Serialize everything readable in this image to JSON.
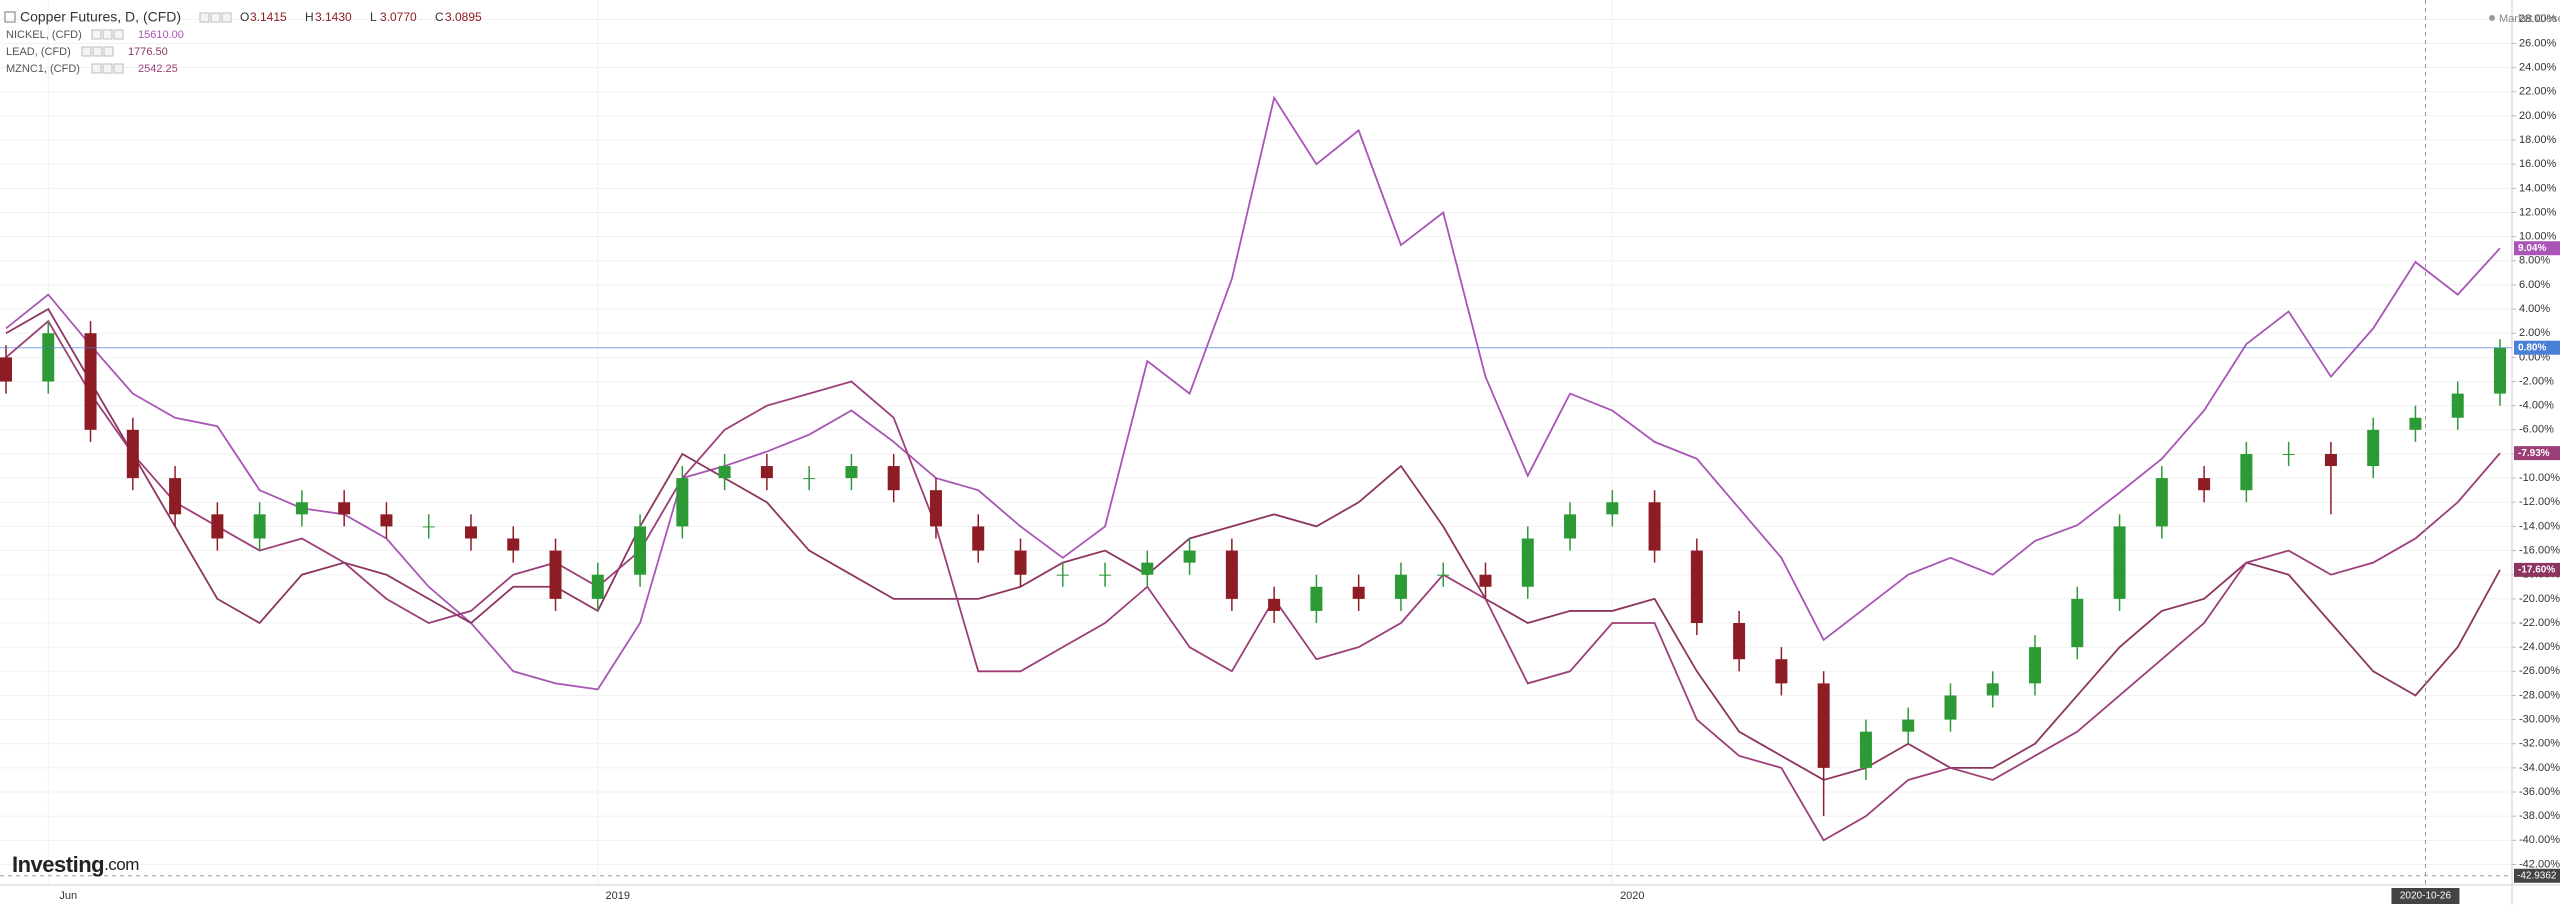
{
  "chart_data": {
    "type": "line",
    "market_status": "Market Closed",
    "brand_name": "Investing",
    "brand_suffix": ".com",
    "ohlc": [
      {
        "label": "O",
        "value": "3.1415"
      },
      {
        "label": "H",
        "value": "3.1430"
      },
      {
        "label": "L",
        "value": "3.0770"
      },
      {
        "label": "C",
        "value": "3.0895"
      }
    ],
    "categories": [
      null,
      "Jun",
      null,
      null,
      null,
      null,
      null,
      null,
      null,
      null,
      null,
      null,
      null,
      null,
      "2019",
      null,
      null,
      null,
      null,
      null,
      null,
      null,
      null,
      null,
      null,
      null,
      null,
      null,
      null,
      null,
      null,
      null,
      null,
      null,
      null,
      null,
      null,
      null,
      "2020",
      null,
      null,
      null,
      null,
      null,
      null,
      null,
      null,
      null,
      null,
      null,
      null,
      null,
      null,
      null,
      null,
      null,
      null,
      null,
      null,
      null
    ],
    "crosshair": {
      "x_label": "2020-10-26",
      "y": -42.9362
    },
    "ylim": [
      -43.7,
      29.6
    ],
    "grid": true,
    "yticks": [
      {
        "value": -42,
        "label": "-42.00%"
      },
      {
        "value": -40,
        "label": "-40.00%"
      },
      {
        "value": -38,
        "label": "-38.00%"
      },
      {
        "value": -36,
        "label": "-36.00%"
      },
      {
        "value": -34,
        "label": "-34.00%"
      },
      {
        "value": -32,
        "label": "-32.00%"
      },
      {
        "value": -30,
        "label": "-30.00%"
      },
      {
        "value": -28,
        "label": "-28.00%"
      },
      {
        "value": -26,
        "label": "-26.00%"
      },
      {
        "value": -24,
        "label": "-24.00%"
      },
      {
        "value": -22,
        "label": "-22.00%"
      },
      {
        "value": -20,
        "label": "-20.00%"
      },
      {
        "value": -18,
        "label": "-18.00%"
      },
      {
        "value": -16,
        "label": "-16.00%"
      },
      {
        "value": -14,
        "label": "-14.00%"
      },
      {
        "value": -12,
        "label": "-12.00%"
      },
      {
        "value": -10,
        "label": "-10.00%"
      },
      {
        "value": -8,
        "label": "-8.00%"
      },
      {
        "value": -6,
        "label": "-6.00%"
      },
      {
        "value": -4,
        "label": "-4.00%"
      },
      {
        "value": -2,
        "label": "-2.00%"
      },
      {
        "value": 0,
        "label": "0.00%"
      },
      {
        "value": 2,
        "label": "2.00%"
      },
      {
        "value": 4,
        "label": "4.00%"
      },
      {
        "value": 6,
        "label": "6.00%"
      },
      {
        "value": 8,
        "label": "8.00%"
      },
      {
        "value": 10,
        "label": "10.00%"
      },
      {
        "value": 12,
        "label": "12.00%"
      },
      {
        "value": 14,
        "label": "14.00%"
      },
      {
        "value": 16,
        "label": "16.00%"
      },
      {
        "value": 18,
        "label": "18.00%"
      },
      {
        "value": 20,
        "label": "20.00%"
      },
      {
        "value": 22,
        "label": "22.00%"
      },
      {
        "value": 24,
        "label": "24.00%"
      },
      {
        "value": 26,
        "label": "26.00%"
      },
      {
        "value": 28,
        "label": "28.00%"
      }
    ],
    "series": [
      {
        "name": "Copper Futures, D, (CFD)",
        "type": "candlestick",
        "up_color": "#2e9a36",
        "down_color": "#8e1c24",
        "color": "#4a7fd8",
        "end_label": "0.80%",
        "open": [
          0,
          -2,
          2,
          -6,
          -10,
          -13,
          -15,
          -13,
          -12,
          -13,
          -14,
          -14,
          -15,
          -16,
          -20,
          -18,
          -14,
          -10,
          -9,
          -10,
          -10,
          -9,
          -11,
          -14,
          -16,
          -18,
          -18,
          -18,
          -17,
          -16,
          -20,
          -21,
          -19,
          -20,
          -18,
          -18,
          -19,
          -15,
          -13,
          -12,
          -16,
          -22,
          -25,
          -27,
          -34,
          -31,
          -30,
          -28,
          -27,
          -24,
          -20,
          -14,
          -10,
          -11,
          -8,
          -8,
          -9,
          -6,
          -5,
          -3
        ],
        "high": [
          1,
          3,
          3,
          -5,
          -9,
          -12,
          -12,
          -11,
          -11,
          -12,
          -13,
          -13,
          -14,
          -15,
          -17,
          -13,
          -9,
          -8,
          -8,
          -9,
          -8,
          -8,
          -10,
          -13,
          -15,
          -17,
          -17,
          -16,
          -15,
          -15,
          -19,
          -18,
          -18,
          -17,
          -17,
          -17,
          -14,
          -12,
          -11,
          -11,
          -15,
          -21,
          -24,
          -26,
          -30,
          -29,
          -27,
          -26,
          -23,
          -19,
          -13,
          -9,
          -9,
          -7,
          -7,
          -7,
          -5,
          -4,
          -2,
          1.5
        ],
        "low": [
          -3,
          -3,
          -7,
          -11,
          -14,
          -16,
          -16,
          -14,
          -14,
          -15,
          -15,
          -16,
          -17,
          -21,
          -21,
          -19,
          -15,
          -11,
          -11,
          -11,
          -11,
          -12,
          -15,
          -17,
          -19,
          -19,
          -19,
          -19,
          -18,
          -21,
          -22,
          -22,
          -21,
          -21,
          -19,
          -20,
          -20,
          -16,
          -14,
          -17,
          -23,
          -26,
          -28,
          -38,
          -35,
          -32,
          -31,
          -29,
          -28,
          -25,
          -21,
          -15,
          -12,
          -12,
          -9,
          -13,
          -10,
          -7,
          -6,
          -4
        ],
        "close": [
          -2,
          2,
          -6,
          -10,
          -13,
          -15,
          -13,
          -12,
          -13,
          -14,
          -14,
          -15,
          -16,
          -20,
          -18,
          -14,
          -10,
          -9,
          -10,
          -10,
          -9,
          -11,
          -14,
          -16,
          -18,
          -18,
          -18,
          -17,
          -16,
          -20,
          -21,
          -19,
          -20,
          -18,
          -18,
          -19,
          -15,
          -13,
          -12,
          -16,
          -22,
          -25,
          -27,
          -34,
          -31,
          -30,
          -28,
          -27,
          -24,
          -20,
          -14,
          -10,
          -11,
          -8,
          -8,
          -9,
          -6,
          -5,
          -3,
          0.8
        ]
      },
      {
        "name": "NICKEL, (CFD)",
        "type": "line",
        "color": "#a855b5",
        "last_price": "15610.00",
        "end_label": "9.04%",
        "values": [
          2.4,
          5.2,
          1,
          -3,
          -5,
          -5.7,
          -11,
          -12.5,
          -13,
          -15,
          -19,
          -22,
          -26,
          -27,
          -27.5,
          -22,
          -10,
          -9,
          -7.8,
          -6.4,
          -4.4,
          -7,
          -10,
          -11,
          -14,
          -16.6,
          -14,
          -0.3,
          -3,
          6.5,
          21.5,
          16,
          18.8,
          9.3,
          12,
          -1.6,
          -9.8,
          -3,
          -4.4,
          -7,
          -8.4,
          -12.5,
          -16.6,
          -23.4,
          -20.7,
          -18,
          -16.6,
          -18,
          -15.2,
          -13.9,
          -11.2,
          -8.4,
          -4.4,
          1.1,
          3.8,
          -1.6,
          2.4,
          7.9,
          5.2,
          9.04
        ]
      },
      {
        "name": "LEAD, (CFD)",
        "type": "line",
        "color": "#8c3560",
        "last_price": "1776.50",
        "end_label": "-17.60%",
        "values": [
          2,
          4,
          -2,
          -8,
          -14,
          -20,
          -22,
          -18,
          -17,
          -18,
          -20,
          -22,
          -19,
          -19,
          -21,
          -14,
          -8,
          -10,
          -12,
          -16,
          -18,
          -20,
          -20,
          -20,
          -19,
          -17,
          -16,
          -18,
          -15,
          -14,
          -13,
          -14,
          -12,
          -9,
          -14,
          -20,
          -22,
          -21,
          -21,
          -20,
          -26,
          -31,
          -33,
          -35,
          -34,
          -32,
          -34,
          -34,
          -32,
          -28,
          -24,
          -21,
          -20,
          -17,
          -18,
          -22,
          -26,
          -28,
          -24,
          -17.6
        ]
      },
      {
        "name": "MZNC1, (CFD)",
        "type": "line",
        "color": "#9c3f78",
        "last_price": "2542.25",
        "end_label": "-7.93%",
        "values": [
          0,
          3,
          -3,
          -8,
          -12,
          -14,
          -16,
          -15,
          -17,
          -20,
          -22,
          -21,
          -18,
          -17,
          -19,
          -16,
          -10,
          -6,
          -4,
          -3,
          -2,
          -5,
          -14,
          -26,
          -26,
          -24,
          -22,
          -19,
          -24,
          -26,
          -20,
          -25,
          -24,
          -22,
          -18,
          -20,
          -27,
          -26,
          -22,
          -22,
          -30,
          -33,
          -34,
          -40,
          -38,
          -35,
          -34,
          -35,
          -33,
          -31,
          -28,
          -25,
          -22,
          -17,
          -16,
          -18,
          -17,
          -15,
          -12,
          -7.93
        ]
      }
    ]
  }
}
